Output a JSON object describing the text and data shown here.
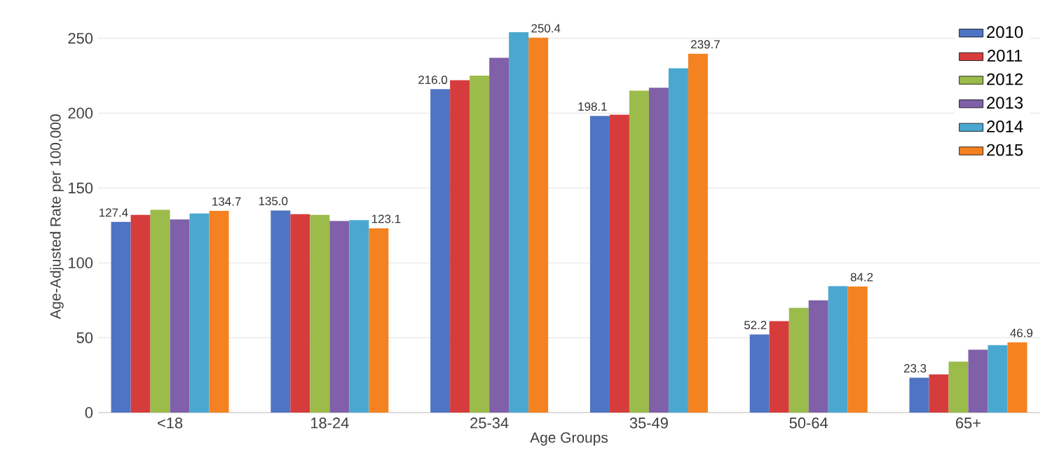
{
  "chart_data": {
    "type": "bar",
    "xlabel": "Age Groups",
    "ylabel": "Age-Adjusted Rate per 100,000",
    "categories": [
      "<18",
      "18-24",
      "25-34",
      "35-49",
      "50-64",
      "65+"
    ],
    "series": [
      {
        "name": "2010",
        "color": "#4f74c4",
        "values": [
          127.4,
          135.0,
          216.0,
          198.1,
          52.2,
          23.3
        ],
        "value_labels": [
          "127.4",
          "135.0",
          "216.0",
          "198.1",
          "52.2",
          "23.3"
        ]
      },
      {
        "name": "2011",
        "color": "#d63c3c",
        "values": [
          132,
          132.5,
          222,
          199,
          61,
          25.5
        ]
      },
      {
        "name": "2012",
        "color": "#9bbb4b",
        "values": [
          135.5,
          132,
          225,
          215,
          70,
          34
        ]
      },
      {
        "name": "2013",
        "color": "#8060a8",
        "values": [
          129,
          128,
          237,
          217,
          75,
          42
        ]
      },
      {
        "name": "2014",
        "color": "#4aa8d0",
        "values": [
          133,
          128.5,
          254,
          230,
          84.5,
          45
        ]
      },
      {
        "name": "2015",
        "color": "#f58220",
        "values": [
          134.7,
          123.1,
          250.4,
          239.7,
          84.2,
          46.9
        ],
        "value_labels": [
          "134.7",
          "123.1",
          "250.4",
          "239.7",
          "84.2",
          "46.9"
        ]
      }
    ],
    "ylim": [
      0,
      262
    ],
    "yticks": [
      0,
      50,
      100,
      150,
      200,
      250
    ],
    "grid": "y",
    "legend": "top right"
  }
}
